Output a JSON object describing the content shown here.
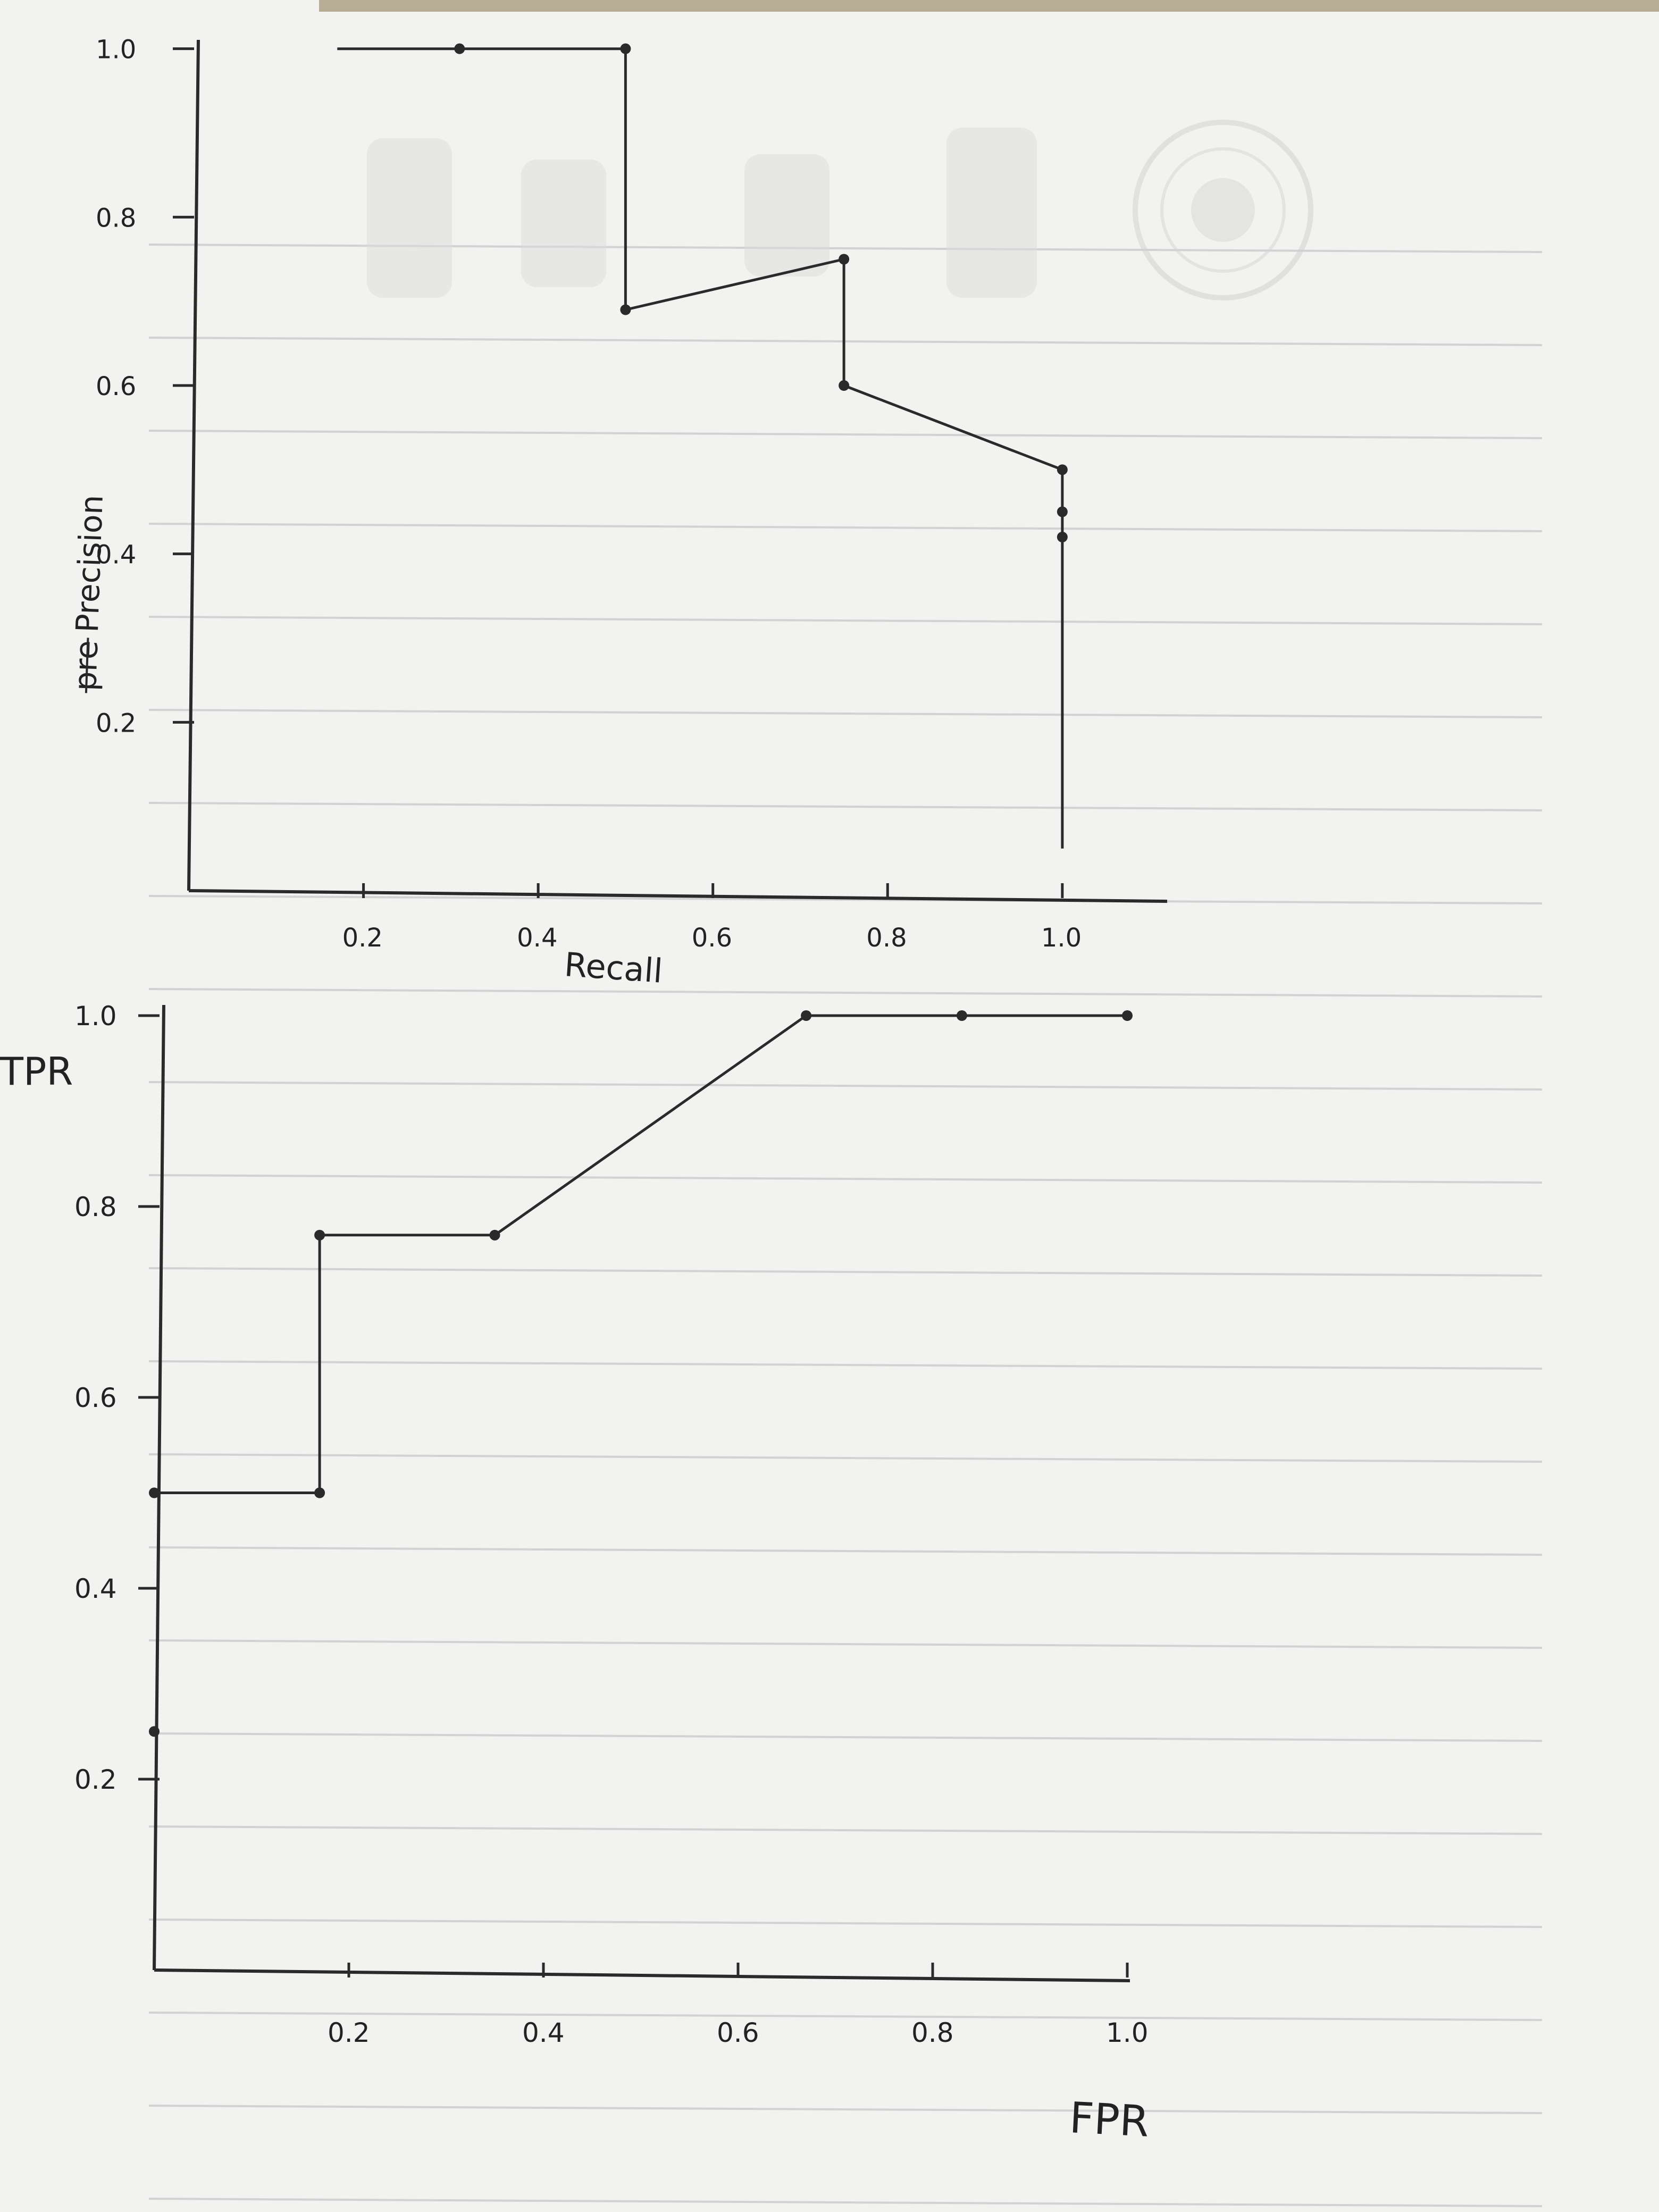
{
  "colors": {
    "paper": "#f2f2f0",
    "ink": "#2a2a2a",
    "rule_line": "#cfcfcf",
    "watermark": "#d6d6d6",
    "desk": "#c9c4b8"
  },
  "chart_data": [
    {
      "type": "line",
      "xlabel": "Recall",
      "ylabel": "Precision",
      "ylabel_struck_prefix": "pre",
      "xlim": [
        0,
        1.05
      ],
      "ylim": [
        0,
        1.02
      ],
      "x_ticks": [
        "0.2",
        "0.4",
        "0.6",
        "0.8",
        "1.0"
      ],
      "x_tick_values": [
        0.2,
        0.4,
        0.6,
        0.8,
        1.0
      ],
      "y_ticks": [
        "0.2",
        "0.4",
        "0.6",
        "0.8",
        "1.0"
      ],
      "y_tick_values": [
        0.2,
        0.4,
        0.6,
        0.8,
        1.0
      ],
      "line_points": [
        [
          0.17,
          1.0
        ],
        [
          0.5,
          1.0
        ],
        [
          0.5,
          0.69
        ],
        [
          0.75,
          0.75
        ],
        [
          0.75,
          0.6
        ],
        [
          1.0,
          0.5
        ],
        [
          1.0,
          0.05
        ]
      ],
      "markers": [
        [
          0.31,
          1.0
        ],
        [
          0.5,
          1.0
        ],
        [
          0.5,
          0.69
        ],
        [
          0.75,
          0.75
        ],
        [
          0.75,
          0.6
        ],
        [
          1.0,
          0.5
        ],
        [
          1.0,
          0.45
        ],
        [
          1.0,
          0.42
        ]
      ]
    },
    {
      "type": "line",
      "xlabel": "FPR",
      "ylabel": "TPR",
      "xlim": [
        0,
        1.0
      ],
      "ylim": [
        0,
        1.0
      ],
      "x_ticks": [
        "0.2",
        "0.4",
        "0.6",
        "0.8",
        "1.0"
      ],
      "x_tick_values": [
        0.2,
        0.4,
        0.6,
        0.8,
        1.0
      ],
      "y_ticks": [
        "0.2",
        "0.4",
        "0.6",
        "0.8",
        "1.0"
      ],
      "y_tick_values": [
        0.2,
        0.4,
        0.6,
        0.8,
        1.0
      ],
      "line_points": [
        [
          0.0,
          0.5
        ],
        [
          0.17,
          0.5
        ],
        [
          0.17,
          0.77
        ],
        [
          0.35,
          0.77
        ],
        [
          0.67,
          1.0
        ],
        [
          1.0,
          1.0
        ]
      ],
      "markers": [
        [
          0.0,
          0.25
        ],
        [
          0.0,
          0.5
        ],
        [
          0.17,
          0.5
        ],
        [
          0.17,
          0.77
        ],
        [
          0.35,
          0.77
        ],
        [
          0.67,
          1.0
        ],
        [
          0.83,
          1.0
        ],
        [
          1.0,
          1.0
        ]
      ]
    }
  ]
}
